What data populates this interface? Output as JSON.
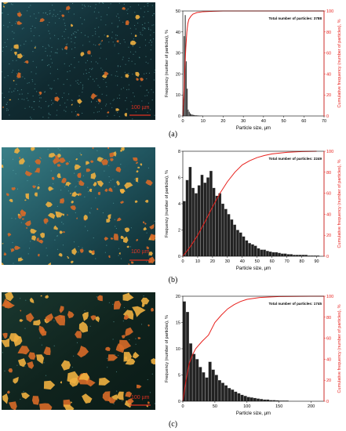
{
  "panels": [
    {
      "label": "(a)",
      "scale_text": "100 µm"
    },
    {
      "label": "(b)",
      "scale_text": "100 µm"
    },
    {
      "label": "(c)",
      "scale_text": "100 µm"
    }
  ],
  "colors": {
    "bars": "#222222",
    "cumulative": "#e8201c",
    "micro_a": "#15303a",
    "micro_b": "#2a6470",
    "micro_c": "#162a24",
    "particle": "#e8a23a"
  },
  "chart_data": [
    {
      "type": "bar",
      "annotation": "Total number of particles: 3788",
      "xlabel": "Particle size, µm",
      "ylabel": "Frequency (number of particles), %",
      "y2label": "Cumulative frequency (number of particles), %",
      "xlim": [
        0,
        70
      ],
      "ylim": [
        0,
        50
      ],
      "y2lim": [
        0,
        100
      ],
      "xticks": [
        0,
        10,
        20,
        30,
        40,
        50,
        60,
        70
      ],
      "yticks": [
        0,
        10,
        20,
        30,
        40,
        50
      ],
      "y2ticks": [
        0,
        20,
        40,
        60,
        80,
        100
      ],
      "bin_width": 0.5,
      "x": [
        0.25,
        0.75,
        1.25,
        1.75,
        2.25,
        2.75,
        3.25,
        3.75,
        4.25,
        4.75,
        5.25,
        5.75,
        6.25,
        6.75,
        7.25,
        7.75,
        8.25,
        8.75,
        9.25,
        9.75
      ],
      "values": [
        5,
        38,
        48,
        26,
        13,
        3,
        2,
        1.2,
        0.8,
        0.6,
        0.5,
        0.4,
        0.3,
        0.3,
        0.2,
        0.2,
        0.15,
        0.1,
        0.1,
        0.1
      ],
      "cumulative": {
        "x": [
          0,
          0.5,
          1,
          1.5,
          2,
          2.5,
          3,
          4,
          5,
          7,
          10,
          15,
          20,
          30,
          70
        ],
        "y": [
          0,
          20,
          45,
          65,
          80,
          88,
          92,
          95,
          97,
          98.5,
          99.3,
          99.7,
          100,
          100,
          100
        ]
      }
    },
    {
      "type": "bar",
      "annotation": "Total number of particles: 2249",
      "xlabel": "Particle size, µm",
      "ylabel": "Frequency (number of particles), %",
      "y2label": "Cumulative frequency (number of particles), %",
      "xlim": [
        0,
        95
      ],
      "ylim": [
        0,
        8
      ],
      "y2lim": [
        0,
        100
      ],
      "xticks": [
        0,
        10,
        20,
        30,
        40,
        50,
        60,
        70,
        80,
        90
      ],
      "yticks": [
        0,
        2,
        4,
        6,
        8
      ],
      "y2ticks": [
        0,
        20,
        40,
        60,
        80,
        100
      ],
      "bin_width": 2,
      "x": [
        1,
        3,
        5,
        7,
        9,
        11,
        13,
        15,
        17,
        19,
        21,
        23,
        25,
        27,
        29,
        31,
        33,
        35,
        37,
        39,
        41,
        43,
        45,
        47,
        49,
        51,
        53,
        55,
        57,
        59,
        61,
        63,
        65,
        67,
        69,
        71,
        73,
        75,
        77,
        79,
        81,
        83,
        85,
        87,
        89,
        91
      ],
      "values": [
        4.2,
        5.8,
        6.8,
        5.2,
        4.8,
        5.4,
        6.2,
        5.6,
        6.0,
        6.5,
        5.2,
        4.6,
        4.8,
        4.0,
        3.6,
        3.2,
        2.8,
        2.4,
        2.0,
        1.8,
        1.5,
        1.2,
        1.0,
        0.9,
        0.8,
        0.6,
        0.5,
        0.5,
        0.4,
        0.35,
        0.3,
        0.3,
        0.25,
        0.2,
        0.2,
        0.15,
        0.15,
        0.1,
        0.1,
        0.1,
        0.1,
        0.1,
        0.05,
        0.05,
        0.05,
        0.05
      ],
      "cumulative": {
        "x": [
          0,
          5,
          10,
          15,
          20,
          25,
          30,
          35,
          40,
          45,
          50,
          55,
          60,
          70,
          80,
          90
        ],
        "y": [
          0,
          9,
          20,
          33,
          47,
          60,
          71,
          80,
          87,
          91,
          94,
          96,
          97.5,
          99,
          99.7,
          100
        ]
      }
    },
    {
      "type": "bar",
      "annotation": "Total number of particles: 1745",
      "xlabel": "Particle size, µm",
      "ylabel": "Frequency (number of particles), %",
      "y2label": "Cumulative frequency (number of particles), %",
      "xlim": [
        0,
        220
      ],
      "ylim": [
        0,
        20
      ],
      "y2lim": [
        0,
        100
      ],
      "xticks": [
        0,
        50,
        100,
        150,
        200
      ],
      "yticks": [
        0,
        5,
        10,
        15,
        20
      ],
      "y2ticks": [
        0,
        20,
        40,
        60,
        80,
        100
      ],
      "bin_width": 5,
      "x": [
        2.5,
        7.5,
        12.5,
        17.5,
        22.5,
        27.5,
        32.5,
        37.5,
        42.5,
        47.5,
        52.5,
        57.5,
        62.5,
        67.5,
        72.5,
        77.5,
        82.5,
        87.5,
        92.5,
        97.5,
        102.5,
        107.5,
        112.5,
        117.5,
        122.5,
        127.5,
        132.5,
        137.5,
        142.5,
        147.5,
        152.5,
        157.5,
        162.5
      ],
      "values": [
        19,
        17,
        11,
        9,
        8,
        6.5,
        5.5,
        4.5,
        7.5,
        6,
        5,
        4,
        3.5,
        3,
        2.5,
        2.2,
        1.8,
        1.5,
        1.2,
        1,
        0.8,
        0.7,
        0.6,
        0.5,
        0.4,
        0.3,
        0.3,
        0.2,
        0.2,
        0.15,
        0.1,
        0.1,
        0.1
      ],
      "cumulative": {
        "x": [
          0,
          5,
          10,
          15,
          20,
          30,
          40,
          50,
          60,
          70,
          80,
          90,
          100,
          120,
          150,
          200,
          220
        ],
        "y": [
          0,
          20,
          36,
          44,
          50,
          57,
          63,
          75,
          82,
          88,
          92,
          95,
          97,
          98.8,
          99.7,
          100,
          100
        ]
      }
    }
  ]
}
